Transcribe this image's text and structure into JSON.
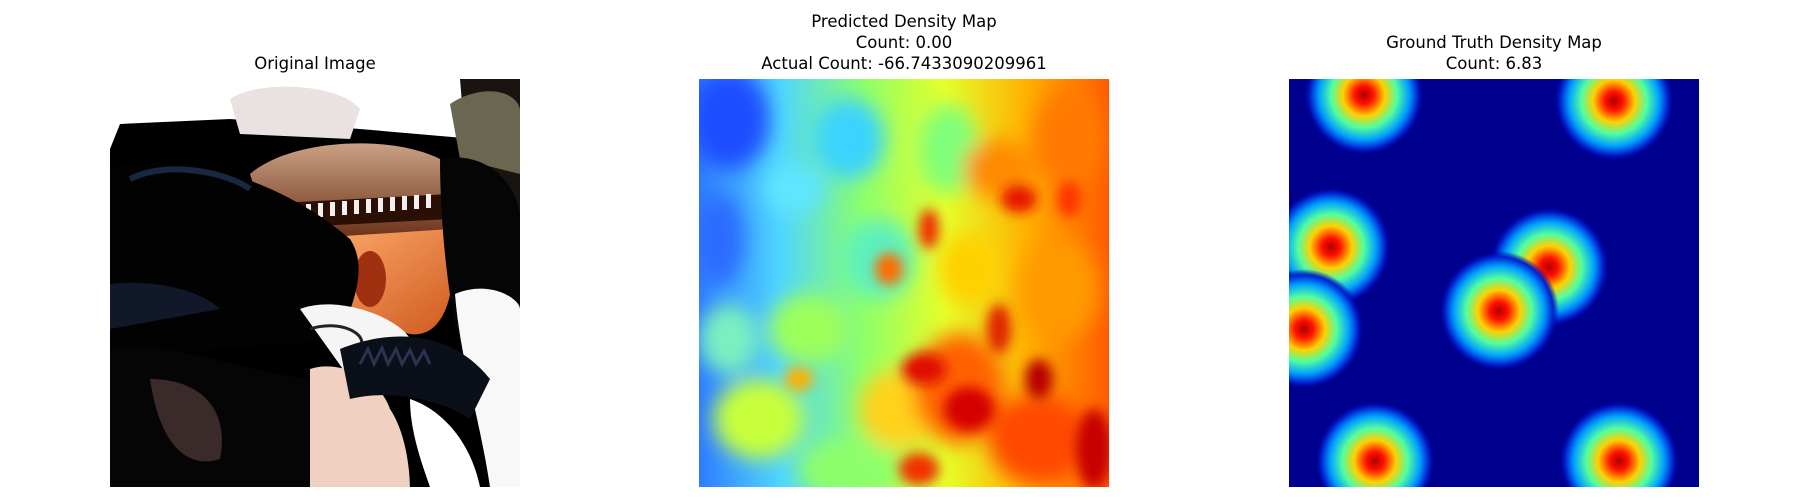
{
  "panels": {
    "original": {
      "title": "Original Image"
    },
    "predicted": {
      "title": "Predicted Density Map",
      "count_line": "Count: 0.00",
      "actual_line": "Actual Count: -66.7433090209961"
    },
    "ground_truth": {
      "title": "Ground Truth Density Map",
      "count_line": "Count: 6.83"
    }
  },
  "colors": {
    "jet_low": "#00007f",
    "jet_high": "#7f0000"
  }
}
